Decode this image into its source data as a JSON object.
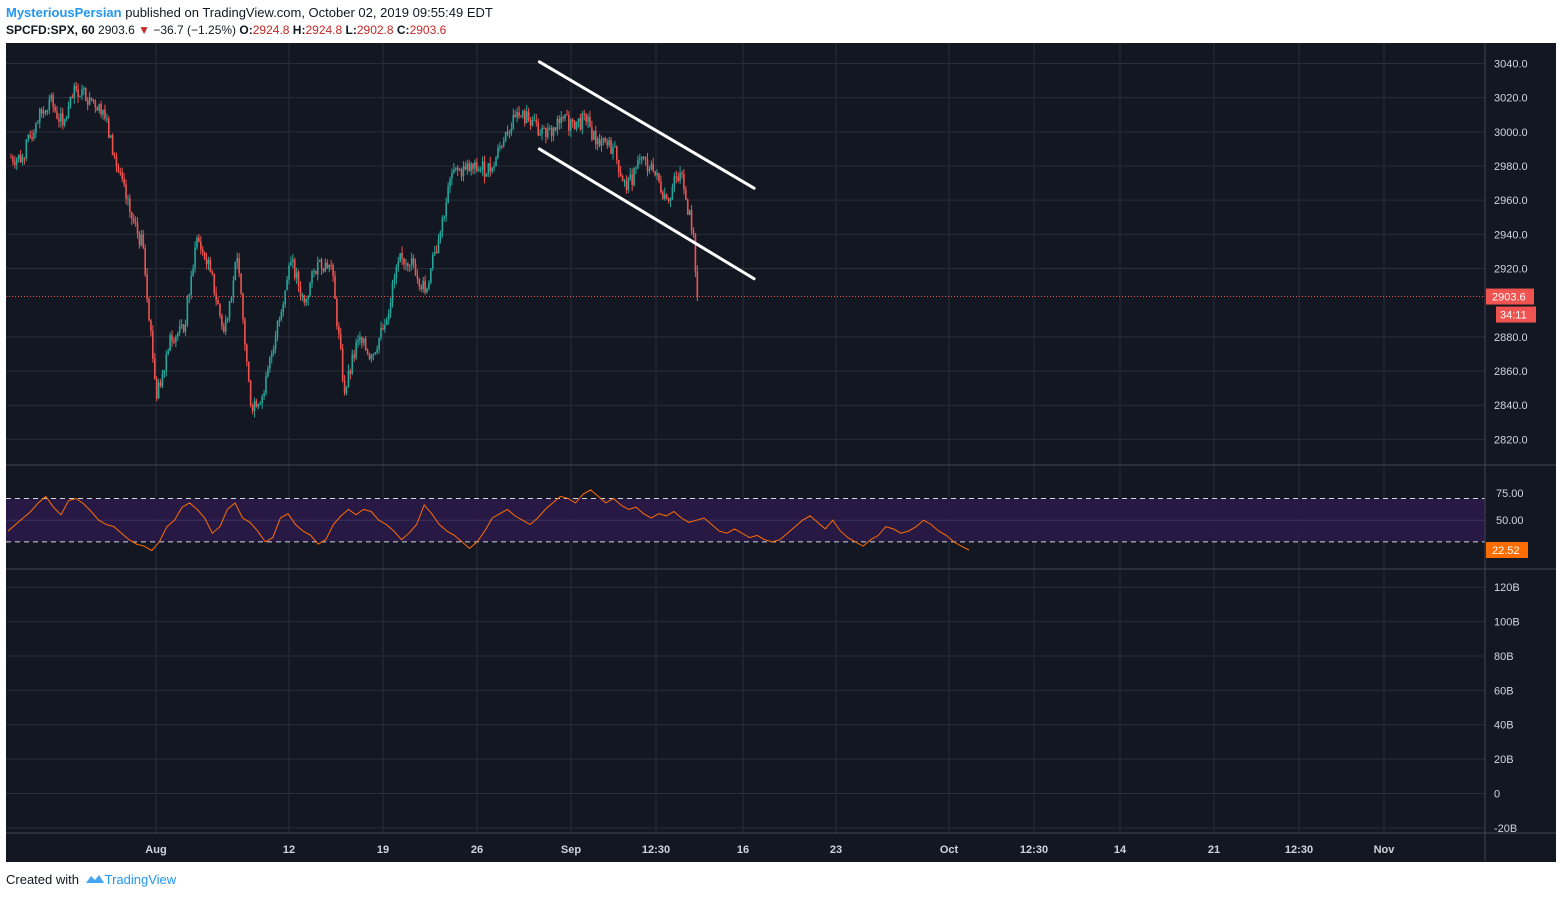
{
  "header": {
    "author": "MysteriousPersian",
    "published_text": "published on TradingView.com, October 02, 2019 09:55:49 EDT",
    "symbol": "SPCFD:SPX, 60",
    "last_price": "2903.6",
    "change_arrow": "▼",
    "change": "−36.7 (−1.25%)",
    "open_label": "O:",
    "open": "2924.8",
    "high_label": "H:",
    "high": "2924.8",
    "low_label": "L:",
    "low": "2902.8",
    "close_label": "C:",
    "close": "2903.6"
  },
  "footer": {
    "created_with": "Created with",
    "brand": "TradingView"
  },
  "colors": {
    "background": "#131722",
    "grid": "#2a2e39",
    "up": "#26a69a",
    "down": "#ef5350",
    "rsi_line": "#ff6d00",
    "rsi_band": "#2a1a48",
    "trendline": "#ffffff",
    "axis_text": "#d1d4dc",
    "price_tag": "#ef5350",
    "rsi_tag": "#ff6d00"
  },
  "chart_data": [
    {
      "type": "candlestick",
      "symbol": "SPCFD:SPX",
      "interval": "60",
      "x_tick_labels": [
        "Aug",
        "12",
        "19",
        "26",
        "Sep",
        "12:30",
        "16",
        "23",
        "Oct",
        "12:30",
        "14",
        "21",
        "12:30",
        "Nov"
      ],
      "y_tick_labels": [
        "3040.0",
        "3020.0",
        "3000.0",
        "2980.0",
        "2960.0",
        "2940.0",
        "2920.0",
        "2880.0",
        "2860.0",
        "2840.0",
        "2820.0"
      ],
      "ylim": [
        2805,
        3052
      ],
      "last_price_label": "2903.6",
      "countdown_label": "34:11",
      "daily_closes": [
        {
          "date": "2019-07-22",
          "close": 2985
        },
        {
          "date": "2019-07-23",
          "close": 3005
        },
        {
          "date": "2019-07-24",
          "close": 3019
        },
        {
          "date": "2019-07-25",
          "close": 3004
        },
        {
          "date": "2019-07-26",
          "close": 3025
        },
        {
          "date": "2019-07-29",
          "close": 3020
        },
        {
          "date": "2019-07-30",
          "close": 3013
        },
        {
          "date": "2019-07-31",
          "close": 2980
        },
        {
          "date": "2019-08-01",
          "close": 2953
        },
        {
          "date": "2019-08-02",
          "close": 2932
        },
        {
          "date": "2019-08-05",
          "close": 2844
        },
        {
          "date": "2019-08-06",
          "close": 2881
        },
        {
          "date": "2019-08-07",
          "close": 2883
        },
        {
          "date": "2019-08-08",
          "close": 2938
        },
        {
          "date": "2019-08-09",
          "close": 2918
        },
        {
          "date": "2019-08-12",
          "close": 2883
        },
        {
          "date": "2019-08-13",
          "close": 2926
        },
        {
          "date": "2019-08-14",
          "close": 2840
        },
        {
          "date": "2019-08-15",
          "close": 2847
        },
        {
          "date": "2019-08-16",
          "close": 2889
        },
        {
          "date": "2019-08-19",
          "close": 2924
        },
        {
          "date": "2019-08-20",
          "close": 2900
        },
        {
          "date": "2019-08-21",
          "close": 2924
        },
        {
          "date": "2019-08-22",
          "close": 2922
        },
        {
          "date": "2019-08-23",
          "close": 2847
        },
        {
          "date": "2019-08-26",
          "close": 2878
        },
        {
          "date": "2019-08-27",
          "close": 2869
        },
        {
          "date": "2019-08-28",
          "close": 2887
        },
        {
          "date": "2019-08-29",
          "close": 2924
        },
        {
          "date": "2019-08-30",
          "close": 2926
        },
        {
          "date": "2019-09-03",
          "close": 2906
        },
        {
          "date": "2019-09-04",
          "close": 2937
        },
        {
          "date": "2019-09-05",
          "close": 2976
        },
        {
          "date": "2019-09-06",
          "close": 2978
        },
        {
          "date": "2019-09-09",
          "close": 2978
        },
        {
          "date": "2019-09-10",
          "close": 2979
        },
        {
          "date": "2019-09-11",
          "close": 3000
        },
        {
          "date": "2019-09-12",
          "close": 3009
        },
        {
          "date": "2019-09-13",
          "close": 3007
        },
        {
          "date": "2019-09-16",
          "close": 2997
        },
        {
          "date": "2019-09-17",
          "close": 3005
        },
        {
          "date": "2019-09-18",
          "close": 3006
        },
        {
          "date": "2019-09-19",
          "close": 3006
        },
        {
          "date": "2019-09-20",
          "close": 2992
        },
        {
          "date": "2019-09-23",
          "close": 2991
        },
        {
          "date": "2019-09-24",
          "close": 2966
        },
        {
          "date": "2019-09-25",
          "close": 2984
        },
        {
          "date": "2019-09-26",
          "close": 2977
        },
        {
          "date": "2019-09-27",
          "close": 2961
        },
        {
          "date": "2019-09-30",
          "close": 2976
        },
        {
          "date": "2019-10-01",
          "close": 2940
        },
        {
          "date": "2019-10-02",
          "close": 2903.6
        }
      ],
      "trendlines": [
        {
          "from": {
            "date": "2019-09-16",
            "price": 3041
          },
          "to": {
            "date": "2019-10-08",
            "price": 2967
          }
        },
        {
          "from": {
            "date": "2019-09-16",
            "price": 2990
          },
          "to": {
            "date": "2019-10-08",
            "price": 2914
          }
        }
      ]
    },
    {
      "type": "line",
      "name": "RSI",
      "y_tick_labels": [
        "75.00",
        "50.00"
      ],
      "ylim": [
        5,
        100
      ],
      "band": [
        30,
        70
      ],
      "last_value_label": "22.52",
      "values": [
        40,
        46,
        52,
        58,
        66,
        72,
        62,
        55,
        68,
        70,
        65,
        58,
        50,
        46,
        44,
        38,
        32,
        28,
        26,
        22,
        30,
        44,
        50,
        62,
        66,
        60,
        52,
        38,
        44,
        60,
        66,
        52,
        48,
        40,
        30,
        34,
        52,
        56,
        46,
        40,
        36,
        28,
        32,
        46,
        54,
        60,
        55,
        60,
        58,
        50,
        46,
        40,
        32,
        38,
        46,
        64,
        56,
        46,
        40,
        36,
        30,
        24,
        30,
        40,
        52,
        56,
        60,
        54,
        50,
        46,
        52,
        60,
        66,
        72,
        70,
        66,
        74,
        78,
        72,
        66,
        70,
        64,
        60,
        62,
        56,
        52,
        56,
        54,
        58,
        52,
        48,
        50,
        52,
        46,
        40,
        38,
        42,
        38,
        34,
        36,
        32,
        30,
        32,
        38,
        44,
        50,
        54,
        48,
        42,
        50,
        40,
        34,
        30,
        26,
        32,
        36,
        44,
        42,
        38,
        40,
        44,
        50,
        46,
        40,
        36,
        30,
        26,
        22.52
      ]
    },
    {
      "type": "volume",
      "y_tick_labels": [
        "120B",
        "100B",
        "80B",
        "60B",
        "40B",
        "20B",
        "0",
        "-20B"
      ]
    }
  ]
}
